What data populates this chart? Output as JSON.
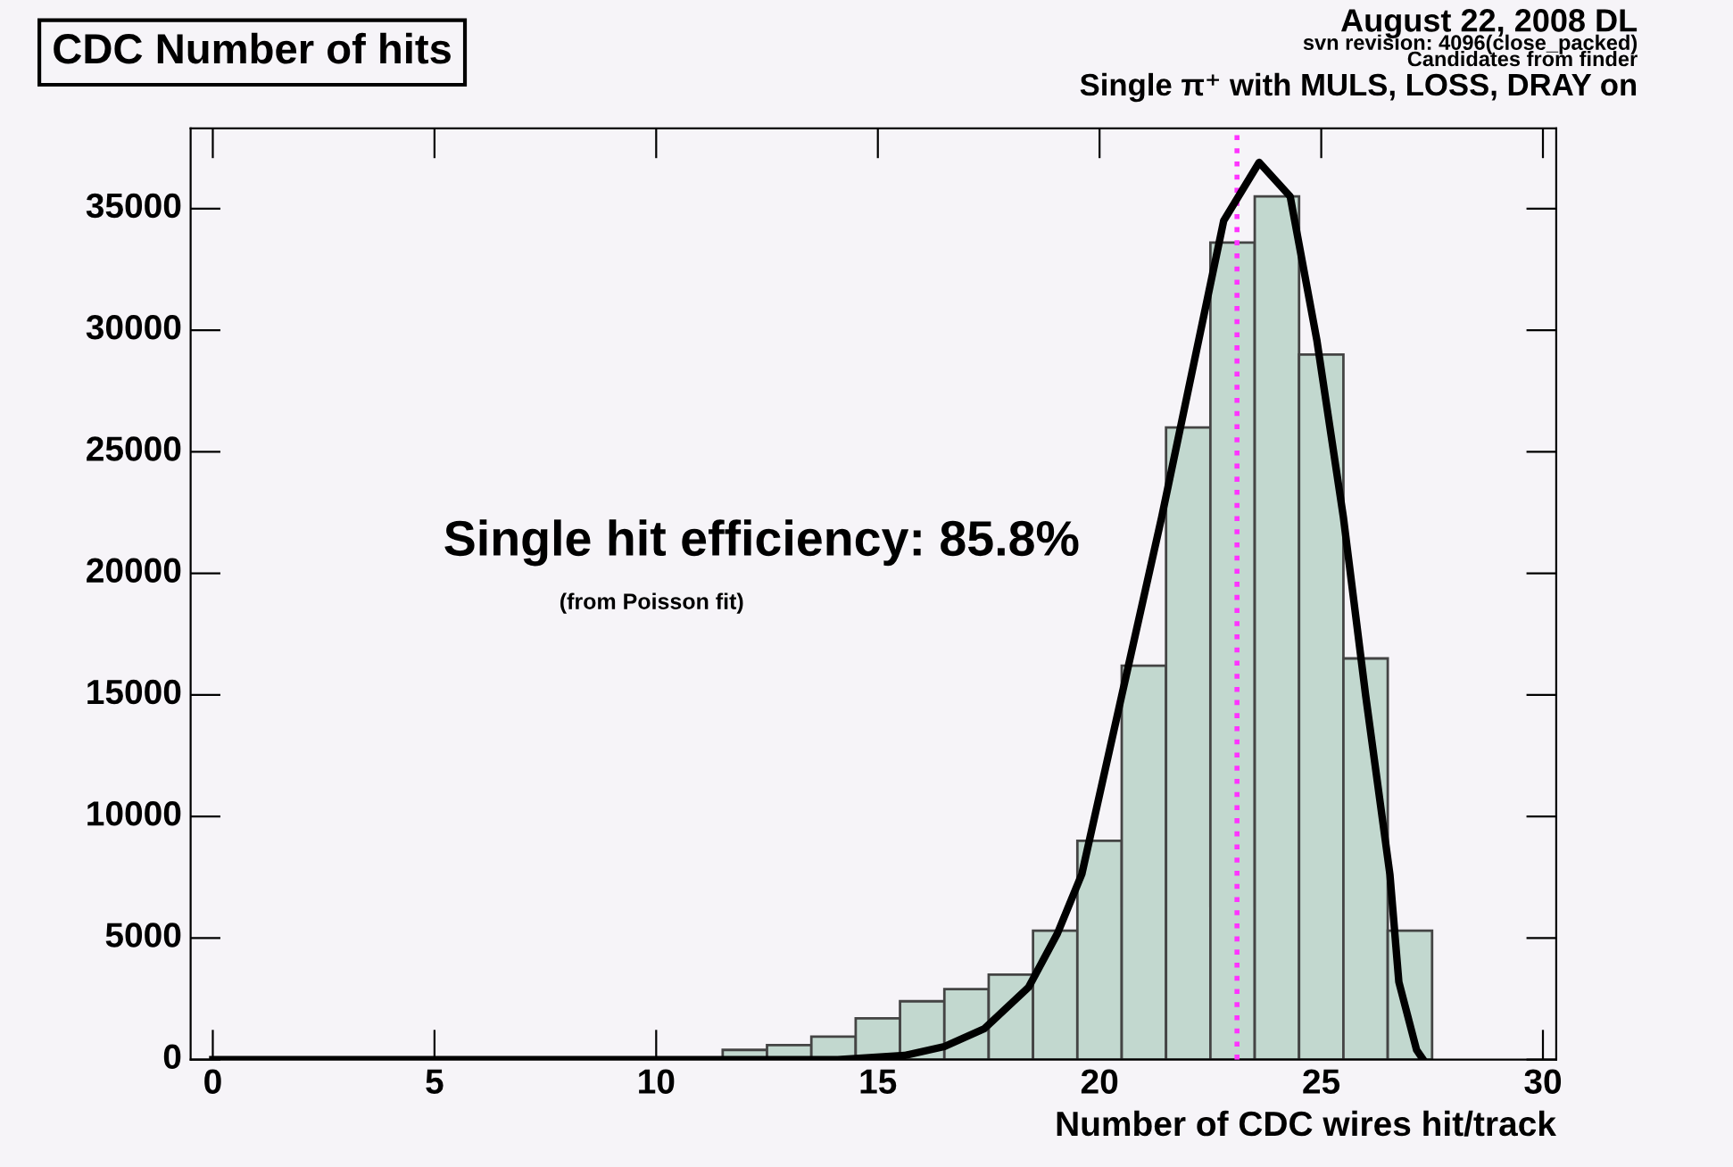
{
  "chart_data": {
    "type": "histogram",
    "title": "CDC Number of hits",
    "xlabel": "Number of CDC wires hit/track",
    "annotations": [
      "August 22, 2008 DL",
      "svn revision: 4096(close_packed)",
      "Candidates from finder",
      "Single π⁺ with MULS, LOSS, DRAY on",
      "Single hit efficiency: 85.8%",
      "(from Poisson fit)"
    ],
    "series": [
      {
        "color": "#c2d8cf",
        "bins": [
          9.5,
          10.5,
          11.5,
          12.5,
          13.5,
          14.5,
          15.5,
          16.5,
          17.5,
          18.5,
          19.5,
          20.5,
          21.5,
          22.5,
          23.5,
          24.5,
          25.5,
          26.5,
          27.5
        ],
        "values": [
          50,
          null,
          400,
          600,
          950,
          1700,
          2400,
          2900,
          3500,
          5300,
          9000,
          16200,
          26000,
          33600,
          35500,
          29000,
          16500,
          5300
        ]
      },
      {
        "type": "line",
        "color": "#000000",
        "x": [
          0,
          14.1,
          15.6,
          16.5,
          17.4,
          18.4,
          19.05,
          19.6,
          20.5,
          21.4,
          22.1,
          22.8,
          23.6,
          24.3,
          24.9,
          25.5,
          26.0,
          26.55,
          26.75,
          27.15,
          27.3
        ],
        "values": [
          0,
          0,
          170,
          540,
          1270,
          2980,
          5190,
          7630,
          14970,
          22300,
          28400,
          34500,
          36900,
          35500,
          29600,
          22300,
          15000,
          7600,
          3200,
          400,
          0
        ]
      }
    ],
    "ref_lines": [
      {
        "axis": "x",
        "value": 23.1,
        "color": "#ff33ff",
        "line_style": "dotted"
      }
    ],
    "xlim": [
      -0.5,
      30.3
    ],
    "ylim": [
      0,
      38300
    ],
    "xticks": [
      0,
      5,
      10,
      15,
      20,
      25,
      30
    ],
    "yticks": [
      0,
      5000,
      10000,
      15000,
      20000,
      25000,
      30000,
      35000
    ],
    "grid": false,
    "legend": false
  }
}
